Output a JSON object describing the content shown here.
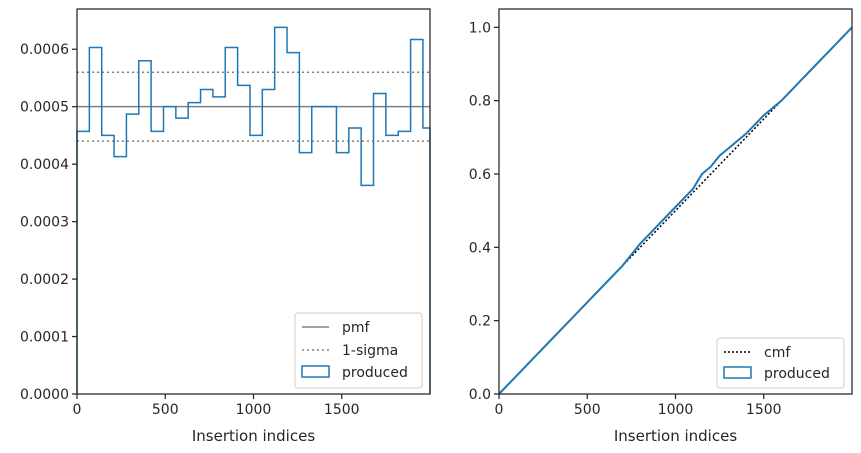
{
  "chart_data": [
    {
      "type": "line",
      "subtype": "step-histogram",
      "xlabel": "Insertion indices",
      "ylabel": "",
      "xlim": [
        0,
        2000
      ],
      "ylim": [
        0,
        0.00067
      ],
      "xticks": [
        0,
        500,
        1000,
        1500
      ],
      "xtick_labels": [
        "0",
        "500",
        "1000",
        "1500"
      ],
      "yticks": [
        0,
        0.0001,
        0.0002,
        0.0003,
        0.0004,
        0.0005,
        0.0006
      ],
      "ytick_labels": [
        "0.0000",
        "0.0001",
        "0.0002",
        "0.0003",
        "0.0004",
        "0.0005",
        "0.0006"
      ],
      "grid": false,
      "legend_position": "lower-right",
      "legend": [
        "pmf",
        "1-sigma",
        "produced"
      ],
      "pmf": 0.0005,
      "sigma_band": [
        0.00044,
        0.00056
      ],
      "bin_edges": [
        0,
        70,
        140,
        210,
        280,
        350,
        420,
        490,
        560,
        630,
        700,
        770,
        840,
        910,
        980,
        1050,
        1120,
        1190,
        1260,
        1330,
        1400,
        1470,
        1540,
        1610,
        1680,
        1750,
        1820,
        1890,
        1960,
        2000
      ],
      "produced": [
        0.000457,
        0.000603,
        0.00045,
        0.000413,
        0.000487,
        0.00058,
        0.000457,
        0.0005,
        0.00048,
        0.000507,
        0.00053,
        0.000517,
        0.000603,
        0.000537,
        0.00045,
        0.00053,
        0.000638,
        0.000594,
        0.00042,
        0.0005,
        0.0005,
        0.00042,
        0.000463,
        0.000363,
        0.000523,
        0.00045,
        0.000457,
        0.000617,
        0.000463
      ],
      "colors": {
        "produced": "#1f77b4",
        "pmf": "#808080",
        "sigma": "#808080"
      }
    },
    {
      "type": "line",
      "xlabel": "Insertion indices",
      "ylabel": "",
      "xlim": [
        0,
        2000
      ],
      "ylim": [
        0,
        1.05
      ],
      "xticks": [
        0,
        500,
        1000,
        1500
      ],
      "xtick_labels": [
        "0",
        "500",
        "1000",
        "1500"
      ],
      "yticks": [
        0,
        0.2,
        0.4,
        0.6,
        0.8,
        1.0
      ],
      "ytick_labels": [
        "0.0",
        "0.2",
        "0.4",
        "0.6",
        "0.8",
        "1.0"
      ],
      "grid": false,
      "legend_position": "lower-right",
      "legend": [
        "cmf",
        "produced"
      ],
      "series": [
        {
          "name": "cmf",
          "x": [
            0,
            2000
          ],
          "y": [
            0,
            1.0
          ]
        },
        {
          "name": "produced",
          "x": [
            0,
            100,
            200,
            300,
            400,
            500,
            600,
            700,
            800,
            900,
            1000,
            1100,
            1150,
            1200,
            1250,
            1300,
            1350,
            1400,
            1500,
            1600,
            1700,
            1800,
            1900,
            2000
          ],
          "y": [
            0,
            0.05,
            0.1,
            0.15,
            0.2,
            0.25,
            0.3,
            0.35,
            0.41,
            0.46,
            0.51,
            0.56,
            0.6,
            0.62,
            0.65,
            0.67,
            0.69,
            0.71,
            0.76,
            0.8,
            0.85,
            0.9,
            0.95,
            1.0
          ]
        }
      ],
      "colors": {
        "produced": "#1f77b4",
        "cmf": "#000000"
      }
    }
  ]
}
